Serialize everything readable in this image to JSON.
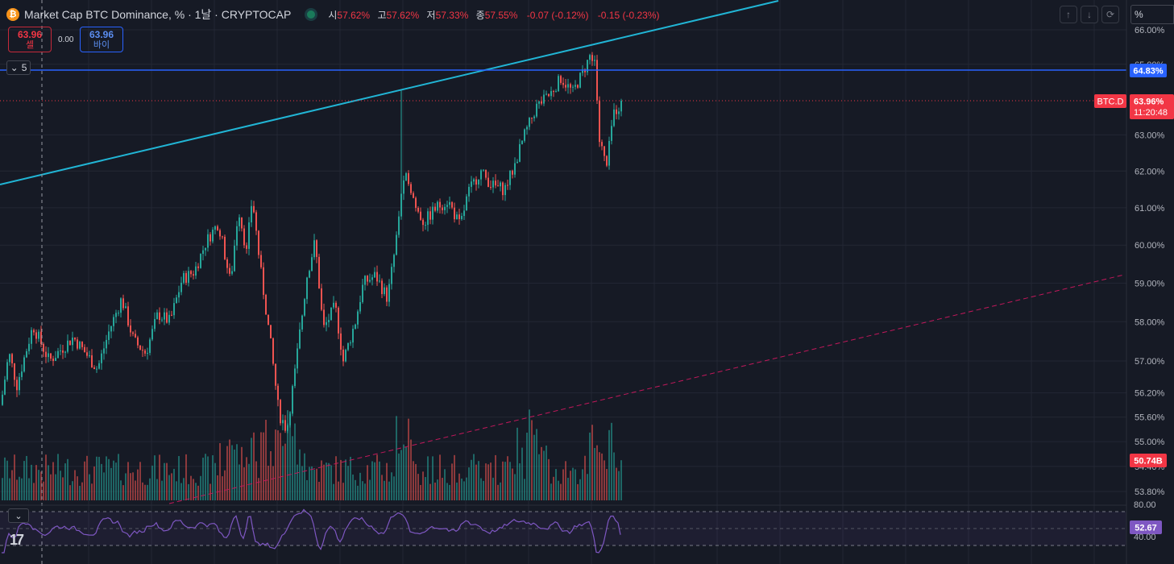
{
  "header": {
    "coin_icon": "bitcoin-icon",
    "title": "Market Cap BTC Dominance, % · 1날 · CRYPTOCAP",
    "open_label": "시",
    "open": "57.62%",
    "high_label": "고",
    "high": "57.62%",
    "low_label": "저",
    "low": "57.33%",
    "close_label": "종",
    "close": "57.55%",
    "change": "-0.07 (-0.12%)",
    "change2": "-0.15 (-0.23%)"
  },
  "trade": {
    "sell_price": "63.96",
    "sell_label": "셀",
    "spread": "0.00",
    "buy_price": "63.96",
    "buy_label": "바이"
  },
  "indicator_toggle": {
    "count": "5"
  },
  "toolbar": {
    "up_icon": "arrow-up-icon",
    "down_icon": "arrow-down-icon",
    "cycle_icon": "refresh-icon",
    "scale_input": "%"
  },
  "chart_data": {
    "type": "candlestick",
    "symbol": "BTC.D",
    "price_axis_ticks": [
      "66.00%",
      "65.00%",
      "63.00%",
      "62.00%",
      "61.00%",
      "60.00%",
      "59.00%",
      "58.00%",
      "57.00%",
      "56.20%",
      "55.60%",
      "55.00%",
      "54.40%",
      "53.80%"
    ],
    "price_tick_values": [
      66.0,
      65.0,
      63.0,
      62.0,
      61.0,
      60.0,
      59.0,
      58.0,
      57.0,
      56.2,
      55.6,
      55.0,
      54.4,
      53.8
    ],
    "scale": "log",
    "last_price_label": "BTC.D",
    "last_price": "63.96%",
    "countdown": "11:20:48",
    "horizontal_line_label": "64.83%",
    "horizontal_line_value": 64.83,
    "volume_label": "50.74B",
    "series_close_keypoints": [
      [
        0,
        55.9
      ],
      [
        10,
        57.2
      ],
      [
        20,
        56.4
      ],
      [
        40,
        57.9
      ],
      [
        60,
        57.0
      ],
      [
        90,
        57.6
      ],
      [
        120,
        56.8
      ],
      [
        135,
        57.8
      ],
      [
        150,
        58.6
      ],
      [
        165,
        57.5
      ],
      [
        180,
        57.2
      ],
      [
        195,
        58.2
      ],
      [
        210,
        58.0
      ],
      [
        225,
        59.1
      ],
      [
        240,
        59.3
      ],
      [
        255,
        60.1
      ],
      [
        270,
        60.6
      ],
      [
        285,
        59.0
      ],
      [
        295,
        61.0
      ],
      [
        305,
        59.8
      ],
      [
        312,
        61.3
      ],
      [
        322,
        59.4
      ],
      [
        335,
        57.4
      ],
      [
        345,
        55.7
      ],
      [
        355,
        55.3
      ],
      [
        365,
        56.7
      ],
      [
        380,
        59.2
      ],
      [
        390,
        60.1
      ],
      [
        400,
        57.8
      ],
      [
        415,
        58.4
      ],
      [
        425,
        57.0
      ],
      [
        440,
        58.0
      ],
      [
        450,
        59.0
      ],
      [
        465,
        59.2
      ],
      [
        480,
        58.6
      ],
      [
        490,
        60.0
      ],
      [
        497,
        61.4
      ],
      [
        505,
        61.9
      ],
      [
        515,
        61.0
      ],
      [
        525,
        60.6
      ],
      [
        540,
        61.0
      ],
      [
        555,
        61.2
      ],
      [
        570,
        60.5
      ],
      [
        580,
        61.4
      ],
      [
        595,
        62.0
      ],
      [
        610,
        61.6
      ],
      [
        625,
        61.5
      ],
      [
        635,
        62.0
      ],
      [
        650,
        63.0
      ],
      [
        665,
        63.8
      ],
      [
        680,
        64.1
      ],
      [
        695,
        64.6
      ],
      [
        710,
        64.2
      ],
      [
        725,
        64.9
      ],
      [
        732,
        65.3
      ],
      [
        738,
        65.1
      ],
      [
        742,
        62.9
      ],
      [
        752,
        62.1
      ],
      [
        760,
        63.6
      ],
      [
        772,
        63.96
      ]
    ],
    "rsi": {
      "upper": "80.00",
      "lower": "40.00",
      "value_label": "52.67",
      "upper_value": 80,
      "lower_value": 40,
      "value": 52.67
    }
  },
  "colors": {
    "up": "#26a69a",
    "down": "#ef5350",
    "background": "#161a25",
    "trendline": "#21b5d5",
    "hline": "#2962ff",
    "last_price": "#f23645",
    "dashed_support": "#c2185b",
    "rsi_line": "#7e57c2"
  }
}
